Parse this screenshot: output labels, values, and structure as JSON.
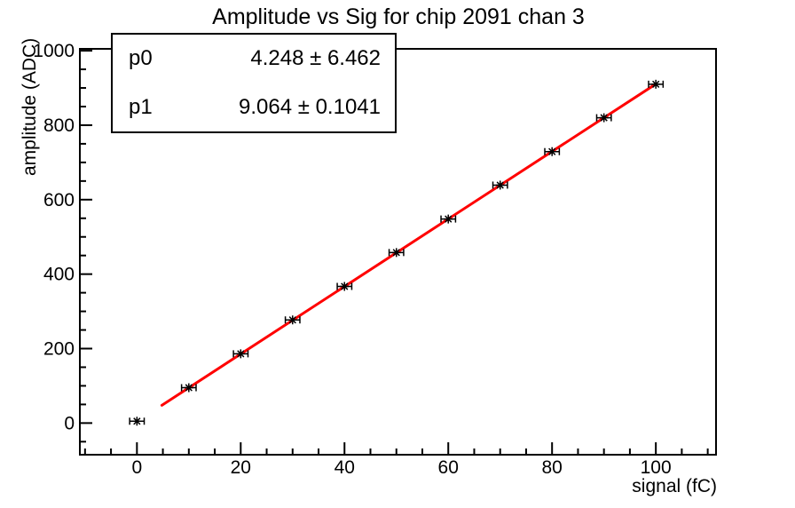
{
  "chart_data": {
    "type": "scatter",
    "title": "Amplitude vs Sig for chip 2091 chan 3",
    "xlabel": "signal (fC)",
    "ylabel": "amplitude (ADC)",
    "xlim": [
      -11,
      111.6
    ],
    "ylim": [
      -85,
      1005
    ],
    "x_major_ticks": [
      0,
      20,
      40,
      60,
      80,
      100
    ],
    "x_minor_step": 5,
    "y_major_ticks": [
      0,
      200,
      400,
      600,
      800,
      1000
    ],
    "y_minor_step": 50,
    "grid": false,
    "legend": "none",
    "points": [
      {
        "x": 0,
        "y": 5,
        "xerr": 1.4
      },
      {
        "x": 10,
        "y": 95,
        "xerr": 1.4
      },
      {
        "x": 20,
        "y": 186,
        "xerr": 1.4
      },
      {
        "x": 30,
        "y": 277,
        "xerr": 1.4
      },
      {
        "x": 40,
        "y": 367,
        "xerr": 1.4
      },
      {
        "x": 50,
        "y": 458,
        "xerr": 1.4
      },
      {
        "x": 60,
        "y": 548,
        "xerr": 1.4
      },
      {
        "x": 70,
        "y": 639,
        "xerr": 1.4
      },
      {
        "x": 80,
        "y": 729,
        "xerr": 1.4
      },
      {
        "x": 90,
        "y": 820,
        "xerr": 1.4
      },
      {
        "x": 100,
        "y": 910,
        "xerr": 1.4
      }
    ],
    "fit": {
      "p0": 4.248,
      "p1": 9.064,
      "x_start": 4.8,
      "x_end": 100,
      "color": "#ff0000"
    },
    "marker": "asterisk",
    "colors": {
      "marker": "#000000",
      "fit_line": "#ff0000",
      "frame": "#000000",
      "background": "#ffffff"
    }
  },
  "stats_box": {
    "rows": [
      {
        "param": "p0",
        "value": "4.248 ± 6.462"
      },
      {
        "param": "p1",
        "value": "9.064 ± 0.1041"
      }
    ]
  }
}
